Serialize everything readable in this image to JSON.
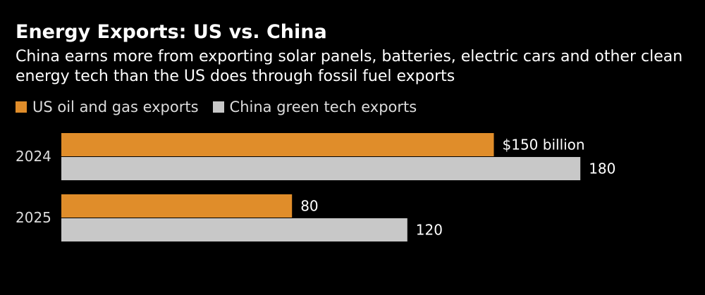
{
  "colors": {
    "background": "#000000",
    "us": "#e08d2a",
    "china": "#c8c8c8",
    "text": "#ffffff"
  },
  "chart_data": {
    "type": "bar",
    "orientation": "horizontal",
    "title": "Energy Exports: US vs. China",
    "subtitle": "China earns more from exporting solar panels, batteries, electric cars and other clean energy tech than the US does through fossil fuel exports",
    "categories": [
      "2024",
      "2025"
    ],
    "series": [
      {
        "name": "US oil and gas exports",
        "color": "#e08d2a",
        "values": [
          150,
          80
        ],
        "labels": [
          "$150 billion",
          "80"
        ]
      },
      {
        "name": "China green tech exports",
        "color": "#c8c8c8",
        "values": [
          180,
          120
        ],
        "labels": [
          "180",
          "120"
        ]
      }
    ],
    "xlim": [
      0,
      180
    ],
    "legend": "top-left",
    "grid": false
  }
}
